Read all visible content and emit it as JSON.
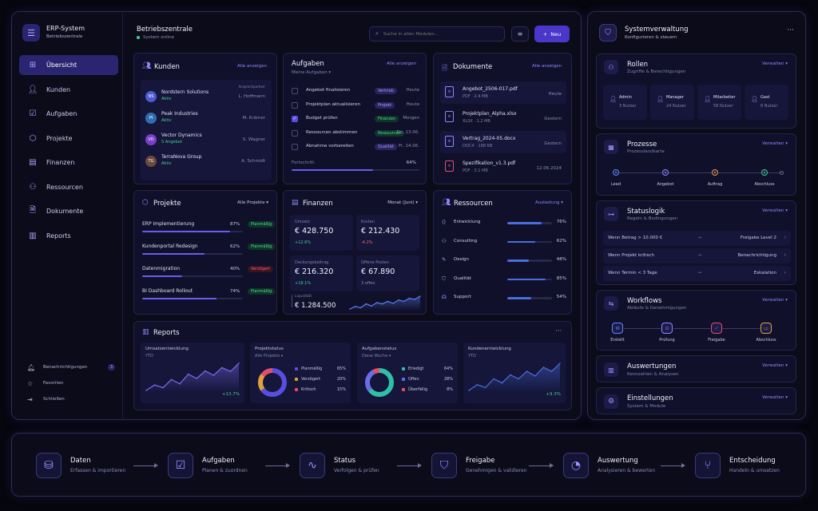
{
  "app": {
    "title": "ERP-System",
    "subtitle": "Betriebszentrale"
  },
  "nav": [
    {
      "label": "Übersicht",
      "icon": "grid-icon"
    },
    {
      "label": "Kunden",
      "icon": "users-icon"
    },
    {
      "label": "Aufgaben",
      "icon": "checkbox-icon"
    },
    {
      "label": "Projekte",
      "icon": "cube-icon"
    },
    {
      "label": "Finanzen",
      "icon": "wallet-icon"
    },
    {
      "label": "Ressourcen",
      "icon": "people-icon"
    },
    {
      "label": "Dokumente",
      "icon": "file-icon"
    },
    {
      "label": "Reports",
      "icon": "chart-icon"
    }
  ],
  "nav_bottom": {
    "notifications": "Benachrichtigungen",
    "notif_count": "3",
    "favorites": "Favoriten",
    "close": "Schließen"
  },
  "header": {
    "title": "Betriebszentrale",
    "status": "System online",
    "search_placeholder": "Suche in allen Modulen...",
    "new_label": "Neu"
  },
  "kunden": {
    "title": "Kunden",
    "link": "Alle anzeigen",
    "contact_header": "Ansprechpartner",
    "items": [
      {
        "initials": "NS",
        "name": "Nordstern Solutions",
        "status": "Aktiv",
        "contact": "L. Hoffmann",
        "color": "#4d5bd6"
      },
      {
        "initials": "PI",
        "name": "Peak Industries",
        "status": "Aktiv",
        "contact": "M. Krämer",
        "color": "#2d6fb0"
      },
      {
        "initials": "VD",
        "name": "Vector Dynamics",
        "status": "S Angebot",
        "contact": "S. Wagner",
        "color": "#7a3fc7"
      },
      {
        "initials": "TG",
        "name": "TerraNova Group",
        "status": "Aktiv",
        "contact": "A. Schmidt",
        "color": "#6a4a3a"
      }
    ]
  },
  "aufgaben": {
    "title": "Aufgaben",
    "subtitle": "Meine Aufgaben",
    "link": "Alle anzeigen",
    "progress_label": "Fortschritt",
    "progress_value": "64%",
    "progress": 0.64,
    "items": [
      {
        "label": "Angebot finalisieren",
        "tag": "Vertrieb",
        "tag_class": "b-purple",
        "due": "Heute",
        "checked": false
      },
      {
        "label": "Projektplan aktualisieren",
        "tag": "Projekt",
        "tag_class": "b-purple",
        "due": "Heute",
        "checked": false
      },
      {
        "label": "Budget prüfen",
        "tag": "Finanzen",
        "tag_class": "b-green",
        "due": "Morgen",
        "checked": true
      },
      {
        "label": "Ressourcen abstimmen",
        "tag": "Ressourcen",
        "tag_class": "b-green",
        "due": "Do, 13.06.",
        "checked": false
      },
      {
        "label": "Abnahme vorbereiten",
        "tag": "Qualität",
        "tag_class": "b-purple",
        "due": "Fr, 14.06.",
        "checked": false
      }
    ]
  },
  "dokumente": {
    "title": "Dokumente",
    "link": "Alle anzeigen",
    "items": [
      {
        "name": "Angebot_2506-017.pdf",
        "meta": "PDF · 2.4 MB",
        "date": "Heute",
        "icon_color": "#8f86ff"
      },
      {
        "name": "Projektplan_Alpha.xlsx",
        "meta": "XLSX · 1.2 MB",
        "date": "Gestern",
        "icon_color": "#8f86ff"
      },
      {
        "name": "Vertrag_2024-05.docx",
        "meta": "DOCX · 198 KB",
        "date": "Gestern",
        "icon_color": "#8f86ff"
      },
      {
        "name": "Spezifikation_v1.3.pdf",
        "meta": "PDF · 3.1 MB",
        "date": "12.06.2024",
        "icon_color": "#e0507a"
      }
    ]
  },
  "projekte": {
    "title": "Projekte",
    "filter": "Alle Projekte",
    "items": [
      {
        "name": "ERP Implementierung",
        "pct": "87%",
        "value": 0.87,
        "status": "Planmäßig",
        "status_class": "b-green"
      },
      {
        "name": "Kundenportal Redesign",
        "pct": "62%",
        "value": 0.62,
        "status": "Planmäßig",
        "status_class": "b-green"
      },
      {
        "name": "Datenmigration",
        "pct": "40%",
        "value": 0.4,
        "status": "Verzögert",
        "status_class": "b-red"
      },
      {
        "name": "BI Dashboard Rollout",
        "pct": "74%",
        "value": 0.74,
        "status": "Planmäßig",
        "status_class": "b-green"
      }
    ]
  },
  "finanzen": {
    "title": "Finanzen",
    "filter": "Monat (Juni)",
    "tiles": [
      {
        "label": "Umsatz",
        "value": "€ 428.750",
        "delta": "+12.6%",
        "dir": "up"
      },
      {
        "label": "Kosten",
        "value": "€ 212.430",
        "delta": "-4.2%",
        "dir": "down"
      },
      {
        "label": "Deckungsbeitrag",
        "value": "€ 216.320",
        "delta": "+18.1%",
        "dir": "up"
      },
      {
        "label": "Offene Posten",
        "value": "€ 67.890",
        "delta": "3 offen",
        "dir": "neutral"
      }
    ],
    "liquidity_label": "Liquidität",
    "liquidity_value": "€ 1.284.500",
    "liquidity_series": [
      3,
      4,
      3.5,
      5,
      4.2,
      5.5,
      5,
      6,
      5.2,
      6.5,
      6,
      7.2,
      6.8,
      8
    ]
  },
  "ressourcen": {
    "title": "Ressourcen",
    "filter": "Auslastung",
    "items": [
      {
        "label": "Entwicklung",
        "pct": "76%",
        "value": 0.76,
        "icon": "code-icon"
      },
      {
        "label": "Consulting",
        "pct": "62%",
        "value": 0.62,
        "icon": "people-icon"
      },
      {
        "label": "Design",
        "pct": "48%",
        "value": 0.48,
        "icon": "pen-icon"
      },
      {
        "label": "Qualität",
        "pct": "85%",
        "value": 0.85,
        "icon": "shield-icon"
      },
      {
        "label": "Support",
        "pct": "54%",
        "value": 0.54,
        "icon": "headset-icon"
      }
    ]
  },
  "reports": {
    "title": "Reports",
    "umsatz": {
      "title": "Umsatzentwicklung",
      "period": "YTD",
      "delta": "+13.7%",
      "series": [
        2,
        3,
        2.5,
        4,
        3.2,
        5,
        4.2,
        5.6,
        4.8,
        6.2,
        5.5,
        7
      ]
    },
    "projektstatus": {
      "title": "Projektstatus",
      "filter": "Alle Projekte",
      "legend": [
        {
          "label": "Planmäßig",
          "value": "65%",
          "v": 65,
          "color": "#5a4ee0"
        },
        {
          "label": "Verzögert",
          "value": "20%",
          "v": 20,
          "color": "#e0a040"
        },
        {
          "label": "Kritisch",
          "value": "15%",
          "v": 15,
          "color": "#e04e6a"
        }
      ]
    },
    "aufgabenstatus": {
      "title": "Aufgabenstatus",
      "filter": "Diese Woche",
      "legend": [
        {
          "label": "Erledigt",
          "value": "64%",
          "v": 64,
          "color": "#2fc0a8"
        },
        {
          "label": "Offen",
          "value": "28%",
          "v": 28,
          "color": "#6a6ee6"
        },
        {
          "label": "Überfällig",
          "value": "8%",
          "v": 8,
          "color": "#e04e6a"
        }
      ]
    },
    "kunden": {
      "title": "Kundenentwicklung",
      "period": "YTD",
      "delta": "+9.3%",
      "series": [
        1.5,
        2.5,
        2,
        3.5,
        2.8,
        4.2,
        3.5,
        4.8,
        4,
        5.5,
        4.8,
        6.2
      ]
    }
  },
  "sys": {
    "title": "Systemverwaltung",
    "subtitle": "Konfigurieren & steuern",
    "manage": "Verwalten",
    "rollen": {
      "title": "Rollen",
      "subtitle": "Zugriffe & Berechtigungen",
      "items": [
        {
          "name": "Admin",
          "count": "3 Nutzer"
        },
        {
          "name": "Manager",
          "count": "24 Nutzer"
        },
        {
          "name": "Mitarbeiter",
          "count": "58 Nutzer"
        },
        {
          "name": "Gast",
          "count": "6 Nutzer"
        }
      ]
    },
    "prozesse": {
      "title": "Prozesse",
      "subtitle": "Prozesslandkarte",
      "steps": [
        "Lead",
        "Angebot",
        "Auftrag",
        "Abschluss"
      ],
      "colors": [
        "#5a8cf0",
        "#8f86ff",
        "#e0a040",
        "#3fd08e"
      ]
    },
    "statuslogik": {
      "title": "Statuslogik",
      "subtitle": "Regeln & Bedingungen",
      "rules": [
        {
          "cond": "Wenn Betrag > 10.000 €",
          "result": "Freigabe Level 2"
        },
        {
          "cond": "Wenn Projekt kritisch",
          "result": "Benachrichtigung"
        },
        {
          "cond": "Wenn Termin < 3 Tage",
          "result": "Eskalation"
        }
      ]
    },
    "workflows": {
      "title": "Workflows",
      "subtitle": "Abläufe & Genehmigungen",
      "steps": [
        {
          "label": "Erstellt",
          "color": "#5a8cf0"
        },
        {
          "label": "Prüfung",
          "color": "#8f86ff"
        },
        {
          "label": "Freigabe",
          "color": "#e04e6a"
        },
        {
          "label": "Abschluss",
          "color": "#e0a040"
        }
      ]
    },
    "auswertungen": {
      "title": "Auswertungen",
      "subtitle": "Kennzahlen & Analysen"
    },
    "einstellungen": {
      "title": "Einstellungen",
      "subtitle": "System & Module"
    }
  },
  "flow": [
    {
      "title": "Daten",
      "sub": "Erfassen & importieren",
      "icon": "database-icon"
    },
    {
      "title": "Aufgaben",
      "sub": "Planen & zuordnen",
      "icon": "task-icon"
    },
    {
      "title": "Status",
      "sub": "Verfolgen & prüfen",
      "icon": "pulse-icon"
    },
    {
      "title": "Freigabe",
      "sub": "Genehmigen & validieren",
      "icon": "shield-check-icon"
    },
    {
      "title": "Auswertung",
      "sub": "Analysieren & bewerten",
      "icon": "pie-icon"
    },
    {
      "title": "Entscheidung",
      "sub": "Handeln & umsetzen",
      "icon": "branch-icon"
    }
  ]
}
